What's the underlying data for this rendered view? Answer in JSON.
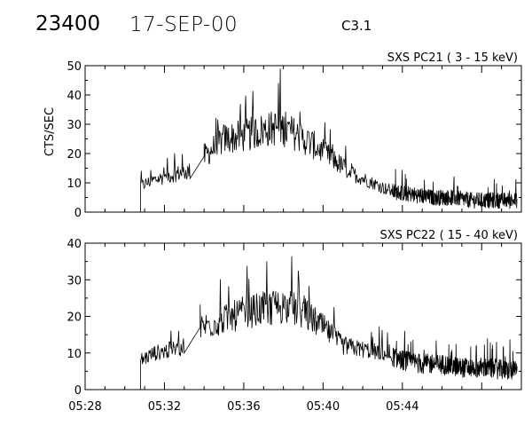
{
  "header": {
    "event_id": "23400",
    "date": "17-SEP-00",
    "goes_class": "C3.1"
  },
  "chart_data": [
    {
      "type": "line",
      "title": "SXS PC21  (  3 - 15 keV)",
      "ylabel": "CTS/SEC",
      "xlabel": "",
      "xlim": [
        "05:28",
        "05:50"
      ],
      "ylim": [
        0,
        50
      ],
      "yticks": [
        0,
        10,
        20,
        30,
        40,
        50
      ],
      "xticks": [
        "05:28",
        "05:32",
        "05:36",
        "05:40",
        "05:44"
      ],
      "grid": false,
      "data_start": "05:30.8",
      "gap": [
        "05:33.3",
        "05:34.0"
      ],
      "series": [
        {
          "x": [
            "05:30.8",
            "05:31.5",
            "05:32.5",
            "05:33.3",
            "05:34.0",
            "05:35.0",
            "05:36.0",
            "05:37.0",
            "05:37.8",
            "05:38.5",
            "05:39.5",
            "05:40.5",
            "05:41.5",
            "05:42.5",
            "05:43.5",
            "05:44.5",
            "05:45.5",
            "05:46.5",
            "05:47.5",
            "05:48.5",
            "05:49.8"
          ],
          "values": [
            9,
            11,
            13,
            14,
            19,
            25,
            26,
            28,
            29,
            27,
            23,
            18,
            13,
            10,
            7,
            6,
            5,
            5,
            4,
            4,
            4
          ]
        }
      ]
    },
    {
      "type": "line",
      "title": "SXS PC22  ( 15 - 40 keV)",
      "ylabel": "",
      "xlabel": "",
      "xlim": [
        "05:28",
        "05:50"
      ],
      "ylim": [
        0,
        40
      ],
      "yticks": [
        0,
        10,
        20,
        30,
        40
      ],
      "xticks": [
        "05:28",
        "05:32",
        "05:36",
        "05:40",
        "05:44"
      ],
      "grid": false,
      "data_start": "05:30.8",
      "gap": [
        "05:33.0",
        "05:33.8"
      ],
      "series": [
        {
          "x": [
            "05:30.8",
            "05:31.5",
            "05:32.5",
            "05:33.0",
            "05:33.8",
            "05:35.0",
            "05:36.0",
            "05:37.0",
            "05:38.0",
            "05:39.0",
            "05:40.0",
            "05:41.0",
            "05:42.0",
            "05:43.0",
            "05:44.0",
            "05:45.0",
            "05:46.0",
            "05:47.0",
            "05:48.0",
            "05:49.8"
          ],
          "values": [
            8,
            10,
            11,
            12,
            17,
            19,
            21,
            22,
            23,
            21,
            17,
            12,
            11,
            10,
            8,
            7,
            7,
            6,
            6,
            5
          ]
        }
      ]
    }
  ]
}
